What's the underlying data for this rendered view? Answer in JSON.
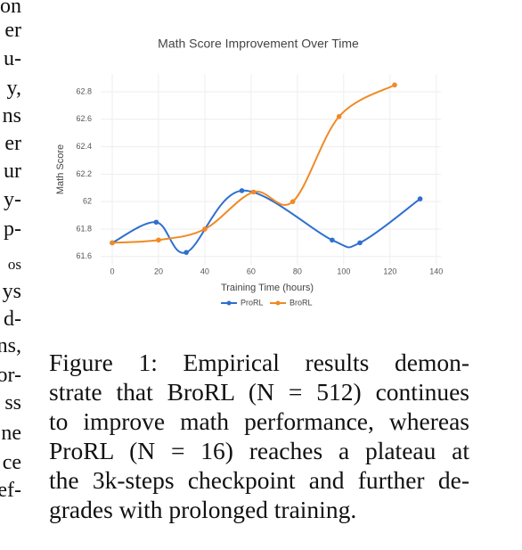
{
  "left_column_fragments": [
    "on",
    "er",
    "u-",
    "y,",
    "ns",
    "er",
    "ur",
    "y-",
    "p-",
    "os",
    "ys",
    "d-",
    "ns,",
    "or-",
    "ss",
    "ne",
    "ce",
    "ef-"
  ],
  "chart_data": {
    "type": "line",
    "title": "Math Score Improvement Over Time",
    "x_label": "Training Time (hours)",
    "y_label": "Math Score",
    "xlim": [
      -5,
      142
    ],
    "xticks": [
      0,
      20,
      40,
      60,
      80,
      100,
      120,
      140
    ],
    "ylim": [
      61.54,
      62.93
    ],
    "yticks": [
      61.6,
      61.8,
      62,
      62.2,
      62.4,
      62.6,
      62.8
    ],
    "grid": true,
    "smooth": true,
    "legend": "bottom",
    "series": [
      {
        "name": "ProRL",
        "color": "#2f6fcf",
        "x": [
          0,
          19,
          32,
          56,
          95,
          107,
          133
        ],
        "values": [
          61.7,
          61.85,
          61.63,
          62.08,
          61.72,
          61.7,
          62.02
        ]
      },
      {
        "name": "BroRL",
        "color": "#f08a24",
        "x": [
          0,
          20,
          40,
          61,
          78,
          98,
          122
        ],
        "values": [
          61.7,
          61.72,
          61.8,
          62.07,
          62.0,
          62.62,
          62.85
        ]
      }
    ]
  },
  "caption": {
    "lines": [
      "Figure 1:  Empirical results demon-",
      "strate that BroRL (N = 512) continues",
      "to improve math performance, whereas",
      "ProRL (N = 16) reaches a plateau at",
      "the 3k-steps checkpoint and further de-",
      "grades with prolonged training."
    ]
  }
}
